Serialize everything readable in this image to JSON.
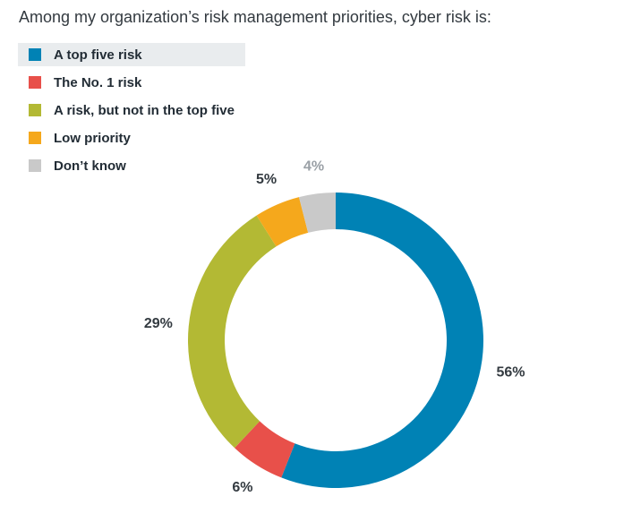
{
  "title": "Among my organization’s risk management priorities, cyber risk is:",
  "chart_data": {
    "type": "pie",
    "donut": true,
    "title": "Among my organization’s risk management priorities, cyber risk is:",
    "categories": [
      "A top five risk",
      "The No. 1 risk",
      "A risk, but not in the top five",
      "Low priority",
      "Don’t know"
    ],
    "values": [
      56,
      6,
      29,
      5,
      4
    ],
    "value_labels": [
      "56%",
      "6%",
      "29%",
      "5%",
      "4%"
    ],
    "colors": [
      "#0082b5",
      "#e8504a",
      "#b3b934",
      "#f5a81c",
      "#c9c9c9"
    ],
    "legend_position": "top-left",
    "highlighted_legend_item": "A top five risk"
  }
}
